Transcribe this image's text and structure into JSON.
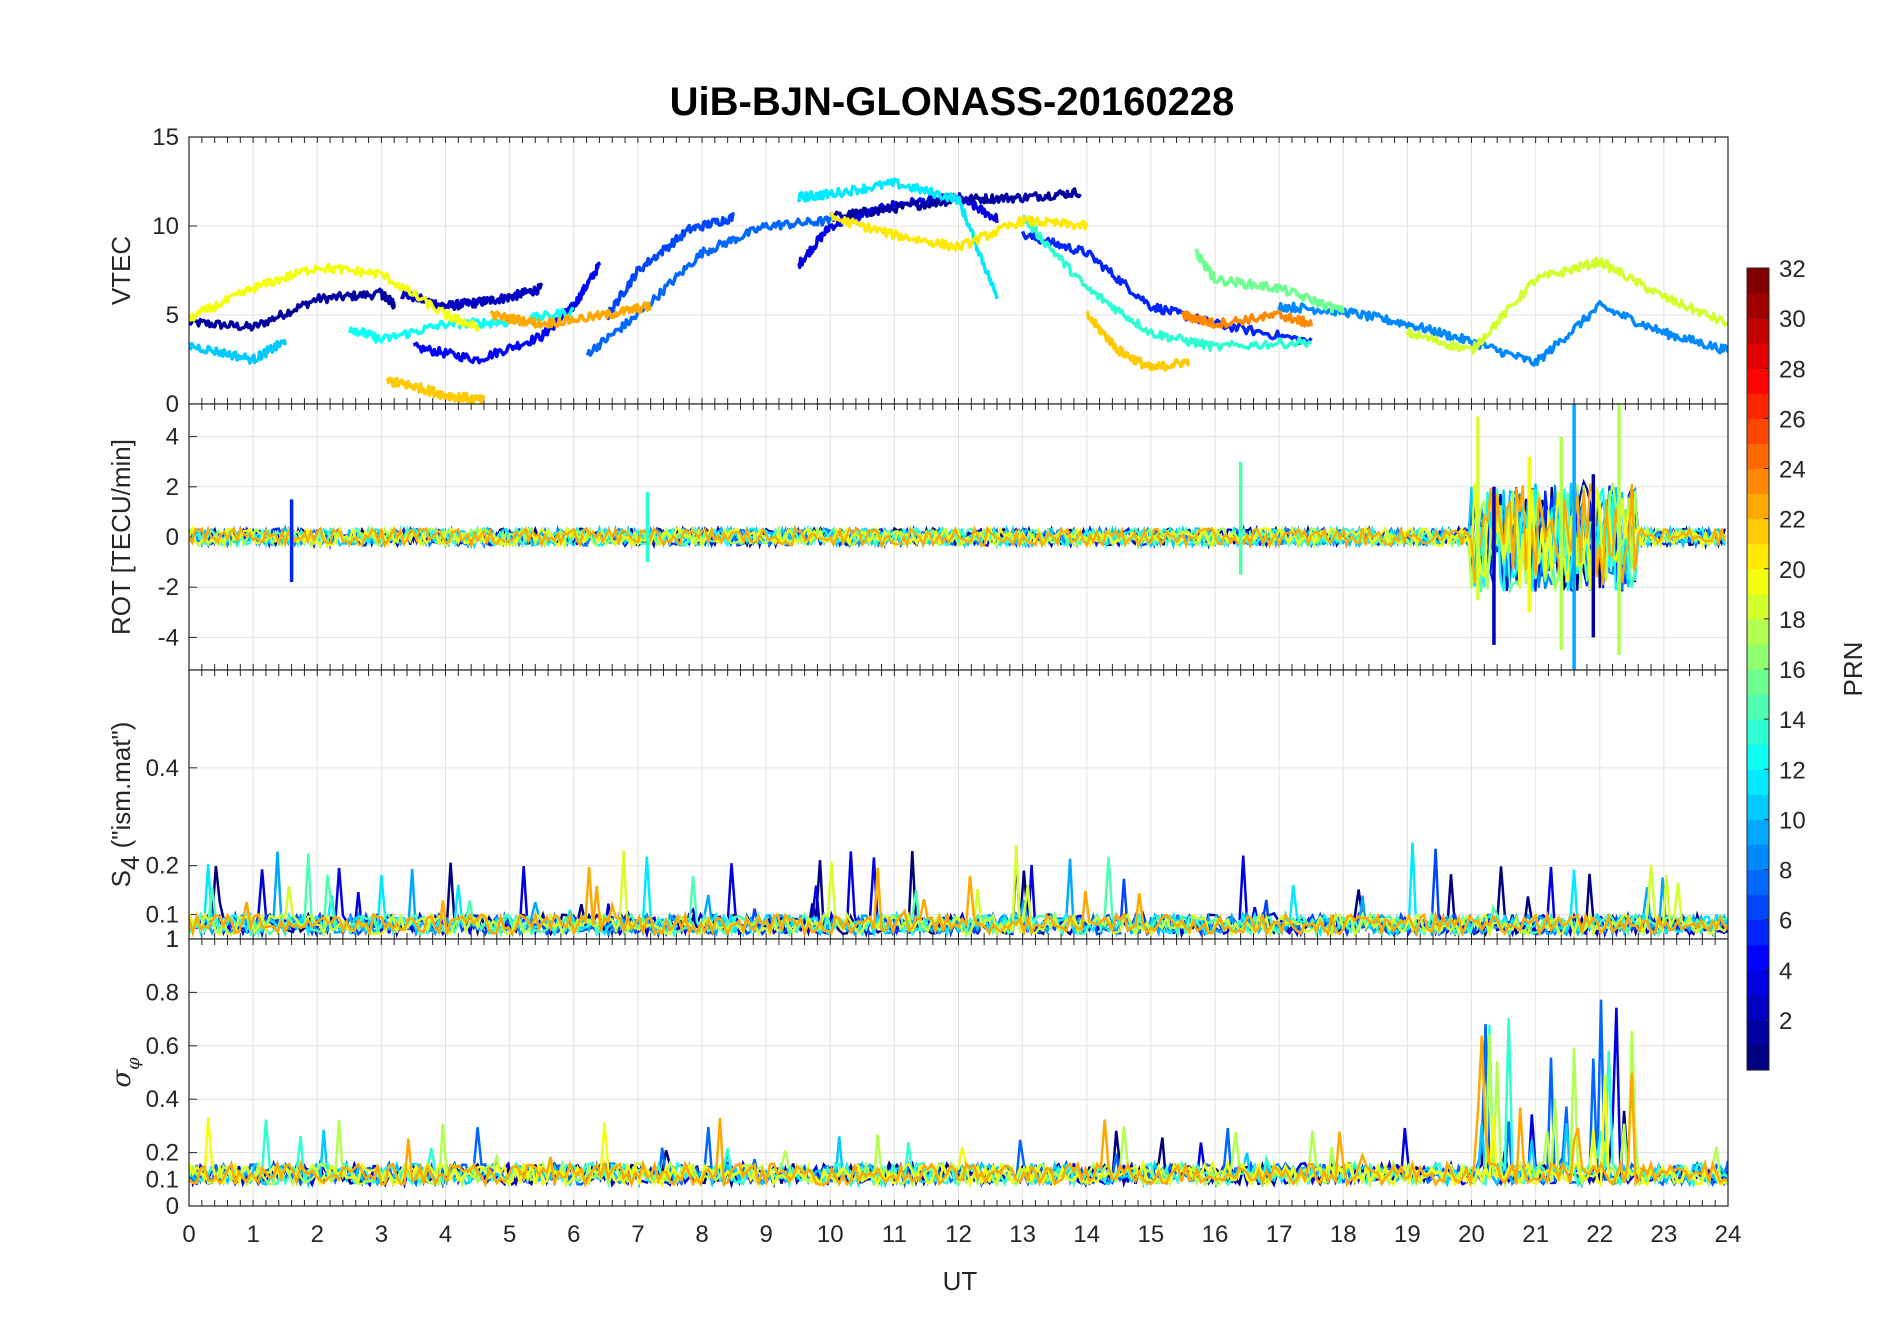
{
  "chart_data": {
    "type": "line",
    "title": "UiB-BJN-GLONASS-20160228",
    "xlabel": "UT",
    "xlim": [
      0,
      24
    ],
    "x_ticks": [
      "0",
      "1",
      "2",
      "3",
      "4",
      "5",
      "6",
      "7",
      "8",
      "9",
      "10",
      "11",
      "12",
      "13",
      "14",
      "15",
      "16",
      "17",
      "18",
      "19",
      "20",
      "21",
      "22",
      "23",
      "24"
    ],
    "grid": true,
    "colorbar": {
      "label": "PRN",
      "colormap": "jet",
      "range": [
        1,
        32
      ],
      "ticks": [
        "2",
        "4",
        "6",
        "8",
        "10",
        "12",
        "14",
        "16",
        "18",
        "20",
        "22",
        "24",
        "26",
        "28",
        "30",
        "32"
      ]
    },
    "panels": [
      {
        "ylabel": "VTEC",
        "ylim": [
          0,
          15
        ],
        "y_ticks": [
          "0",
          "5",
          "10",
          "15"
        ],
        "series": [
          {
            "prn": 2,
            "x": [
              0,
              1,
              2,
              3,
              3.2
            ],
            "values": [
              4.6,
              4.3,
              5.9,
              6.2,
              5.6
            ]
          },
          {
            "prn": 3,
            "x": [
              3.3,
              4,
              4.5,
              5,
              5.5
            ],
            "values": [
              6.2,
              5.5,
              5.7,
              6.0,
              6.5
            ]
          },
          {
            "prn": 5,
            "x": [
              3.5,
              4.5,
              5.5,
              6,
              6.4
            ],
            "values": [
              3.2,
              2.5,
              3.8,
              5.5,
              7.8
            ]
          },
          {
            "prn": 4,
            "x": [
              9.5,
              10,
              11,
              12,
              12.6
            ],
            "values": [
              7.8,
              10,
              11.2,
              11.6,
              10.4
            ]
          },
          {
            "prn": 2,
            "x": [
              10,
              11,
              12,
              13,
              13.9
            ],
            "values": [
              10.5,
              11.0,
              11.5,
              11.6,
              11.9
            ]
          },
          {
            "prn": 6,
            "x": [
              13,
              14,
              15,
              16,
              17.5
            ],
            "values": [
              9.5,
              8.5,
              5.5,
              4.5,
              3.5
            ]
          },
          {
            "prn": 8,
            "x": [
              6.2,
              7,
              8,
              9,
              10
            ],
            "values": [
              2.8,
              5.0,
              8.5,
              10.0,
              10.3
            ]
          },
          {
            "prn": 7,
            "x": [
              6.5,
              7,
              7.8,
              8.5
            ],
            "values": [
              4.8,
              7.5,
              9.8,
              10.5
            ]
          },
          {
            "prn": 9,
            "x": [
              17,
              18,
              19,
              20,
              21,
              22,
              23,
              24
            ],
            "values": [
              5.5,
              5.2,
              4.5,
              3.5,
              2.3,
              5.5,
              4.0,
              3.0
            ]
          },
          {
            "prn": 11,
            "x": [
              0,
              1,
              1.5
            ],
            "values": [
              3.3,
              2.5,
              3.5
            ]
          },
          {
            "prn": 12,
            "x": [
              9.5,
              10,
              11,
              12,
              12.6
            ],
            "values": [
              11.6,
              11.8,
              12.4,
              11.5,
              6.0
            ]
          },
          {
            "prn": 13,
            "x": [
              2.5,
              3,
              4,
              5,
              6
            ],
            "values": [
              4.3,
              3.6,
              4.5,
              4.6,
              5.2
            ]
          },
          {
            "prn": 14,
            "x": [
              13,
              14,
              15,
              16,
              17.5
            ],
            "values": [
              10.5,
              6.5,
              4.0,
              3.2,
              3.5
            ]
          },
          {
            "prn": 16,
            "x": [
              15.7,
              16,
              17,
              18
            ],
            "values": [
              8.5,
              7.0,
              6.5,
              5.2
            ]
          },
          {
            "prn": 19,
            "x": [
              19,
              20,
              21,
              22,
              23,
              24
            ],
            "values": [
              4.0,
              3.0,
              7.0,
              8.0,
              6.0,
              4.5
            ]
          },
          {
            "prn": 20,
            "x": [
              0,
              1,
              2,
              3,
              4,
              4.5
            ],
            "values": [
              4.8,
              6.5,
              7.7,
              7.3,
              5.0,
              4.3
            ]
          },
          {
            "prn": 21,
            "x": [
              10,
              11,
              12,
              13,
              14
            ],
            "values": [
              10.5,
              9.5,
              8.8,
              10.3,
              10.0
            ]
          },
          {
            "prn": 22,
            "x": [
              3.1,
              3.5,
              4,
              4.6
            ],
            "values": [
              1.3,
              1.0,
              0.5,
              0.2
            ]
          },
          {
            "prn": 22,
            "x": [
              14,
              14.5,
              15,
              15.6
            ],
            "values": [
              5.0,
              3.0,
              2.0,
              2.4
            ]
          },
          {
            "prn": 23,
            "x": [
              4.7,
              5.5,
              6.5,
              7.2
            ],
            "values": [
              5.0,
              4.5,
              5.0,
              5.5
            ]
          },
          {
            "prn": 24,
            "x": [
              15.5,
              16,
              17,
              17.5
            ],
            "values": [
              5.0,
              4.5,
              5.0,
              4.5
            ]
          }
        ]
      },
      {
        "ylabel": "ROT [TECU/min]",
        "ylim": [
          -5.3,
          5.3
        ],
        "y_ticks": [
          "-4",
          "-2",
          "0",
          "2",
          "4"
        ],
        "spikes": [
          {
            "prn": 6,
            "x": 1.6,
            "values": [
              1.5,
              -1.8
            ]
          },
          {
            "prn": 14,
            "x": 7.15,
            "values": [
              1.8,
              -1.0
            ]
          },
          {
            "prn": 15,
            "x": 16.4,
            "values": [
              3.0,
              -1.5
            ]
          },
          {
            "prn": 19,
            "x": 20.1,
            "values": [
              4.8,
              -2.5
            ]
          },
          {
            "prn": 3,
            "x": 20.35,
            "values": [
              2.0,
              -4.3
            ]
          },
          {
            "prn": 20,
            "x": 20.9,
            "values": [
              3.2,
              -3.0
            ]
          },
          {
            "prn": 10,
            "x": 21.6,
            "values": [
              5.3,
              -5.3
            ]
          },
          {
            "prn": 18,
            "x": 21.4,
            "values": [
              4.0,
              -4.5
            ]
          },
          {
            "prn": 2,
            "x": 21.9,
            "values": [
              2.5,
              -4.0
            ]
          },
          {
            "prn": 18,
            "x": 22.3,
            "values": [
              5.3,
              -4.7
            ]
          }
        ]
      },
      {
        "ylabel": "S4 (\"ism.mat\")",
        "ylabel_main": "S",
        "ylabel_sub": "4",
        "ylabel_rest": " (\"ism.mat\")",
        "ylim": [
          0.05,
          0.6
        ],
        "y_ticks": [
          "0.1",
          "0.2",
          "0.4"
        ],
        "y_tick_values": [
          0.1,
          0.2,
          0.4
        ],
        "top_tick_label": "1"
      },
      {
        "ylabel": "σφ",
        "ylabel_main": "σ",
        "ylabel_sub": "φ",
        "ylim": [
          0,
          1
        ],
        "y_ticks": [
          "0",
          "0.1",
          "0.2",
          "0.4",
          "0.6",
          "0.8",
          "1"
        ],
        "y_tick_values": [
          0,
          0.1,
          0.2,
          0.4,
          0.6,
          0.8,
          1
        ]
      }
    ]
  }
}
